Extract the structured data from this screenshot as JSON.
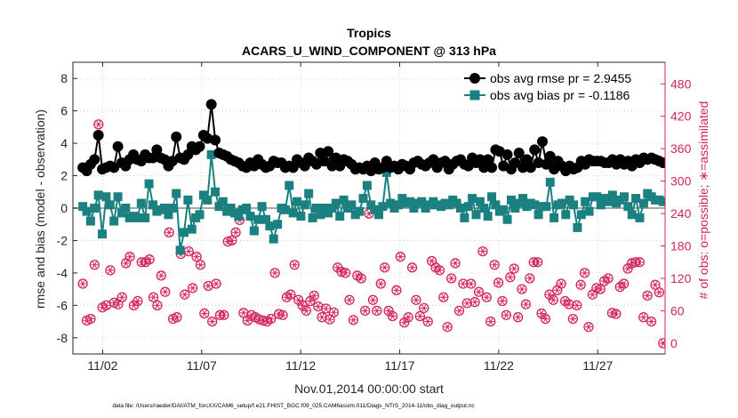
{
  "chart_data": {
    "type": "line",
    "title": "Tropics",
    "subtitle": "ACARS_U_WIND_COMPONENT @ 313 hPa",
    "xlabel": "Nov.01,2014 00:00:00 start",
    "ylabel_left": "rmse and bias (model - observation)",
    "ylabel_right": "# of obs: o=possible; ∗=assimilated",
    "footnote": "data file: /Users/raeder/DAI/ATM_forcXX/CAM6_setup/f.e21.FHIST_BGC.f09_025.CAM6assim.011/Diags_NTrS_2014-11/obs_diag_output.nc",
    "xlim": [
      0.5,
      30.4
    ],
    "ylim_left": [
      -9,
      9
    ],
    "ylim_right": [
      -20,
      520
    ],
    "x_ticks": [
      {
        "value": 2,
        "label": "11/02"
      },
      {
        "value": 7,
        "label": "11/07"
      },
      {
        "value": 12,
        "label": "11/12"
      },
      {
        "value": 17,
        "label": "11/17"
      },
      {
        "value": 22,
        "label": "11/22"
      },
      {
        "value": 27,
        "label": "11/27"
      }
    ],
    "y_ticks_left": [
      {
        "value": 8,
        "label": "8"
      },
      {
        "value": 6,
        "label": "6"
      },
      {
        "value": 4,
        "label": "4"
      },
      {
        "value": 2,
        "label": "2"
      },
      {
        "value": 0,
        "label": "0"
      },
      {
        "value": -2,
        "label": "-2"
      },
      {
        "value": -4,
        "label": "-4"
      },
      {
        "value": -6,
        "label": "-6"
      },
      {
        "value": -8,
        "label": "-8"
      }
    ],
    "y_ticks_right": [
      {
        "value": 480,
        "label": "480"
      },
      {
        "value": 420,
        "label": "420"
      },
      {
        "value": 360,
        "label": "360"
      },
      {
        "value": 300,
        "label": "300"
      },
      {
        "value": 240,
        "label": "240"
      },
      {
        "value": 180,
        "label": "180"
      },
      {
        "value": 120,
        "label": "120"
      },
      {
        "value": 60,
        "label": "60"
      },
      {
        "value": 0,
        "label": "0"
      }
    ],
    "legend_position": "top-right",
    "series": [
      {
        "name": "obs avg rmse pr = 2.9455",
        "axis": "left",
        "color": "#000000",
        "marker": "circle",
        "values": [
          2.5,
          2.3,
          2.7,
          3.0,
          4.5,
          2.4,
          2.5,
          2.6,
          2.5,
          3.8,
          2.8,
          2.6,
          3.0,
          3.3,
          3.0,
          2.9,
          3.3,
          3.1,
          3.1,
          3.6,
          3.1,
          3.0,
          2.6,
          2.9,
          4.4,
          3.1,
          3.0,
          3.3,
          3.8,
          3.6,
          3.8,
          4.5,
          4.3,
          6.4,
          4.2,
          3.4,
          3.3,
          3.2,
          3.0,
          2.9,
          2.8,
          2.6,
          2.5,
          2.8,
          2.6,
          3.0,
          2.7,
          2.5,
          2.6,
          2.9,
          2.8,
          2.8,
          2.5,
          2.6,
          2.5,
          3.0,
          2.8,
          2.6,
          3.1,
          2.9,
          2.7,
          3.4,
          2.9,
          3.5,
          2.6,
          3.1,
          2.6,
          3.0,
          2.9,
          2.7,
          2.4,
          2.5,
          2.4,
          2.6,
          2.3,
          2.8,
          2.4,
          2.5,
          2.9,
          2.5,
          2.6,
          2.4,
          2.7,
          2.6,
          2.4,
          2.8,
          2.9,
          2.7,
          2.6,
          2.8,
          3.0,
          2.5,
          2.8,
          2.9,
          2.4,
          2.7,
          2.9,
          3.0,
          2.7,
          2.6,
          3.1,
          2.8,
          3.0,
          2.5,
          3.0,
          2.5,
          3.6,
          3.5,
          2.6,
          3.3,
          2.4,
          2.8,
          3.4,
          2.5,
          3.0,
          2.5,
          3.6,
          2.8,
          4.1,
          2.7,
          3.2,
          2.4,
          2.9,
          2.6,
          2.3,
          2.6,
          2.4,
          2.5,
          2.9,
          2.7,
          3.0,
          2.9,
          2.9,
          2.9,
          2.8,
          2.8,
          3.0,
          2.7,
          3.0,
          2.7,
          2.9,
          2.6,
          3.0,
          2.8,
          3.1,
          3.0,
          3.1,
          3.0,
          2.9,
          2.8
        ]
      },
      {
        "name": "obs avg bias pr = -0.1186",
        "axis": "left",
        "color": "#1a8080",
        "marker": "square",
        "values": [
          0.1,
          -0.2,
          -0.8,
          0.0,
          0.8,
          -1.6,
          0.7,
          0.2,
          -0.8,
          0.7,
          -0.3,
          0.0,
          -0.6,
          -0.5,
          -0.6,
          0.3,
          -0.6,
          1.5,
          0.2,
          -0.2,
          -0.1,
          0.0,
          -0.4,
          0.0,
          0.9,
          -2.6,
          -1.5,
          0.5,
          -1.3,
          -0.6,
          -0.4,
          0.8,
          0.5,
          3.3,
          1.0,
          0.1,
          0.4,
          -0.2,
          0.0,
          -0.3,
          -0.5,
          -0.1,
          0.0,
          -0.5,
          -1.4,
          -0.7,
          0.1,
          -0.7,
          -1.1,
          -1.9,
          -1.0,
          0.0,
          -0.1,
          1.4,
          -0.3,
          0.4,
          -0.5,
          0.2,
          0.9,
          -0.6,
          0.0,
          -0.4,
          0.0,
          -0.3,
          0.0,
          0.3,
          -0.5,
          0.5,
          0.0,
          0.2,
          -0.4,
          -0.2,
          0.6,
          1.4,
          0.2,
          -0.1,
          -0.4,
          0.1,
          2.2,
          0.3,
          0.0,
          0.2,
          0.6,
          0.3,
          0.4,
          0.0,
          0.3,
          0.4,
          0.0,
          0.2,
          0.4,
          0.2,
          0.1,
          0.3,
          0.2,
          0.5,
          0.3,
          0.0,
          -0.6,
          0.1,
          0.6,
          -0.4,
          0.4,
          0.0,
          -0.5,
          0.7,
          0.2,
          -0.2,
          -0.1,
          -0.7,
          0.5,
          0.0,
          0.3,
          0.6,
          0.1,
          0.3,
          0.2,
          -0.4,
          0.1,
          0.1,
          1.6,
          -0.6,
          0.2,
          0.3,
          -0.4,
          0.5,
          0.2,
          -1.2,
          -0.4,
          0.4,
          -0.2,
          0.7,
          0.7,
          0.2,
          0.6,
          0.4,
          0.8,
          0.3,
          0.5,
          0.7,
          0.1,
          -0.4,
          0.6,
          -0.6,
          0.3,
          0.9,
          0.7,
          0.5,
          0.5,
          0.4
        ]
      },
      {
        "name": "possible",
        "axis": "right",
        "color": "#d0245e",
        "marker": "open-circle",
        "values": [
          110,
          42,
          45,
          145,
          405,
          66,
          70,
          135,
          75,
          72,
          85,
          148,
          160,
          70,
          78,
          150,
          150,
          155,
          85,
          70,
          125,
          95,
          205,
          45,
          48,
          165,
          90,
          170,
          102,
          160,
          145,
          55,
          106,
          40,
          110,
          52,
          52,
          188,
          190,
          205,
          228,
          56,
          42,
          52,
          48,
          44,
          42,
          40,
          45,
          130,
          54,
          52,
          85,
          90,
          145,
          80,
          70,
          60,
          78,
          88,
          68,
          48,
          64,
          44,
          57,
          140,
          132,
          130,
          80,
          43,
          125,
          120,
          60,
          240,
          80,
          60,
          110,
          140,
          60,
          50,
          98,
          160,
          38,
          48,
          140,
          80,
          50,
          65,
          40,
          152,
          140,
          135,
          85,
          30,
          120,
          148,
          60,
          110,
          74,
          110,
          76,
          95,
          170,
          85,
          40,
          145,
          112,
          78,
          52,
          122,
          138,
          48,
          100,
          72,
          120,
          150,
          150,
          55,
          45,
          90,
          80,
          98,
          110,
          78,
          72,
          45,
          70,
          108,
          130,
          30,
          90,
          102,
          100,
          115,
          120,
          56,
          54,
          104,
          110,
          138,
          148,
          150,
          150,
          48,
          88,
          40,
          108,
          94,
          0
        ]
      }
    ],
    "colors": {
      "rmse": "#000000",
      "bias": "#1a8080",
      "count": "#d0245e",
      "zero_line": "#a8a8a8",
      "axis": "#262626"
    }
  }
}
